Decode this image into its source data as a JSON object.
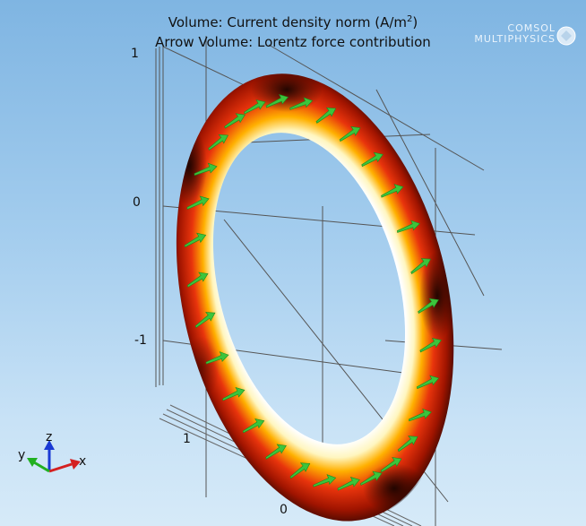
{
  "plot": {
    "title_line1": "Volume: Current density norm (A/m",
    "title_sup": "2",
    "title_line1_end": ")",
    "title_line2": "Arrow Volume: Lorentz force contribution"
  },
  "axes": {
    "z_ticks": [
      "1",
      "0",
      "-1"
    ],
    "x_ticks": [
      "1",
      "0"
    ]
  },
  "logo": {
    "line1": "COMSOL",
    "line2": "MULTIPHYSICS"
  },
  "triad": {
    "x": "x",
    "y": "y",
    "z": "z"
  },
  "colors": {
    "arrow": "#3cc43c",
    "ring_hot": "#fff6c0",
    "ring_mid": "#e8340c",
    "ring_dark": "#2a0700",
    "grid": "#555555"
  }
}
